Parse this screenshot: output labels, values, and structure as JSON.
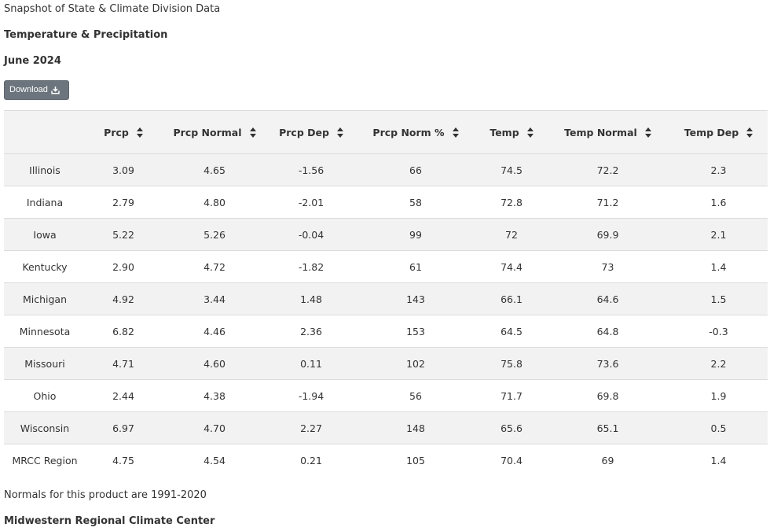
{
  "header": {
    "subtitle": "Snapshot of State & Climate Division Data",
    "title": "Temperature & Precipitation",
    "period": "June 2024"
  },
  "download_button": {
    "label": "Download",
    "icon": "download-icon"
  },
  "table": {
    "columns": [
      "",
      "Prcp",
      "Prcp Normal",
      "Prcp Dep",
      "Prcp Norm %",
      "Temp",
      "Temp Normal",
      "Temp Dep"
    ],
    "rows": [
      [
        "Illinois",
        "3.09",
        "4.65",
        "-1.56",
        "66",
        "74.5",
        "72.2",
        "2.3"
      ],
      [
        "Indiana",
        "2.79",
        "4.80",
        "-2.01",
        "58",
        "72.8",
        "71.2",
        "1.6"
      ],
      [
        "Iowa",
        "5.22",
        "5.26",
        "-0.04",
        "99",
        "72",
        "69.9",
        "2.1"
      ],
      [
        "Kentucky",
        "2.90",
        "4.72",
        "-1.82",
        "61",
        "74.4",
        "73",
        "1.4"
      ],
      [
        "Michigan",
        "4.92",
        "3.44",
        "1.48",
        "143",
        "66.1",
        "64.6",
        "1.5"
      ],
      [
        "Minnesota",
        "6.82",
        "4.46",
        "2.36",
        "153",
        "64.5",
        "64.8",
        "-0.3"
      ],
      [
        "Missouri",
        "4.71",
        "4.60",
        "0.11",
        "102",
        "75.8",
        "73.6",
        "2.2"
      ],
      [
        "Ohio",
        "2.44",
        "4.38",
        "-1.94",
        "56",
        "71.7",
        "69.8",
        "1.9"
      ],
      [
        "Wisconsin",
        "6.97",
        "4.70",
        "2.27",
        "148",
        "65.6",
        "65.1",
        "0.5"
      ],
      [
        "MRCC Region",
        "4.75",
        "4.54",
        "0.21",
        "105",
        "70.4",
        "69",
        "1.4"
      ]
    ]
  },
  "footer": {
    "note": "Normals for this product are 1991-2020",
    "org": "Midwestern Regional Climate Center"
  }
}
